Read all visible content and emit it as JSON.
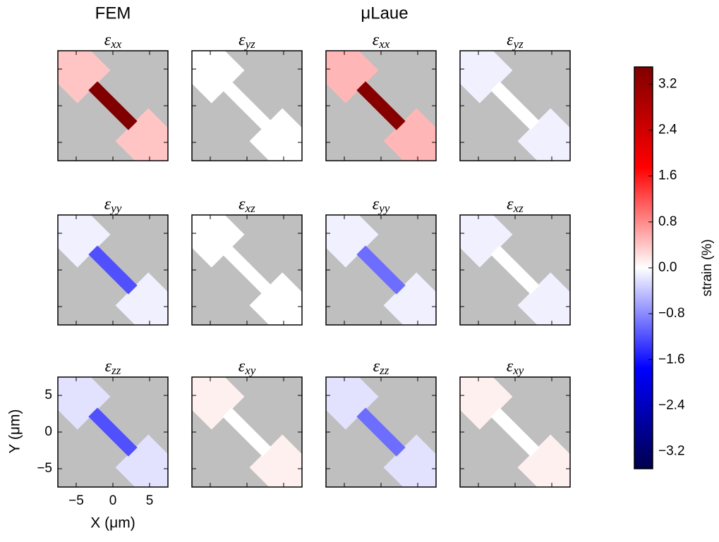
{
  "chart_data": {
    "type": "heatmap",
    "column_headers": [
      "FEM",
      "μLaue"
    ],
    "xlabel": "X (μm)",
    "ylabel": "Y (μm)",
    "xlim": [
      -7.5,
      7.5
    ],
    "ylim": [
      -7.5,
      7.5
    ],
    "xticks": [
      {
        "value": -5,
        "label": "−5"
      },
      0,
      5
    ],
    "yticks": [
      5,
      0,
      {
        "value": -5,
        "label": "−5"
      }
    ],
    "background": "#bfbfbf",
    "colorbar": {
      "label": "strain (%)",
      "lim": [
        -3.5,
        3.5
      ],
      "ticks": [
        3.2,
        2.4,
        1.6,
        0.8,
        {
          "value": 0,
          "label": "0.0"
        },
        {
          "value": -0.8,
          "label": "−0.8"
        },
        {
          "value": -1.6,
          "label": "−1.6"
        },
        {
          "value": -2.4,
          "label": "−2.4"
        },
        {
          "value": -3.2,
          "label": "−3.2"
        }
      ]
    },
    "panels": [
      {
        "symbol": "ε",
        "subscript": "xx",
        "pad": 0.4,
        "neck": 3.5
      },
      {
        "symbol": "ε",
        "subscript": "yz",
        "pad": 0,
        "neck": 0
      },
      {
        "symbol": "ε",
        "subscript": "xx",
        "pad": 0.5,
        "neck": 3.4
      },
      {
        "symbol": "ε",
        "subscript": "yz",
        "pad": -0.1,
        "neck": 0
      },
      {
        "symbol": "ε",
        "subscript": "yy",
        "pad": -0.1,
        "neck": -1.2
      },
      {
        "symbol": "ε",
        "subscript": "xz",
        "pad": 0,
        "neck": 0
      },
      {
        "symbol": "ε",
        "subscript": "yy",
        "pad": -0.1,
        "neck": -1.0
      },
      {
        "symbol": "ε",
        "subscript": "xz",
        "pad": -0.1,
        "neck": 0
      },
      {
        "symbol": "ε",
        "subscript": "zz",
        "pad": -0.2,
        "neck": -1.2
      },
      {
        "symbol": "ε",
        "subscript": "xy",
        "pad": 0.1,
        "neck": 0
      },
      {
        "symbol": "ε",
        "subscript": "zz",
        "pad": -0.2,
        "neck": -1.0
      },
      {
        "symbol": "ε",
        "subscript": "xy",
        "pad": 0.1,
        "neck": 0
      }
    ]
  }
}
